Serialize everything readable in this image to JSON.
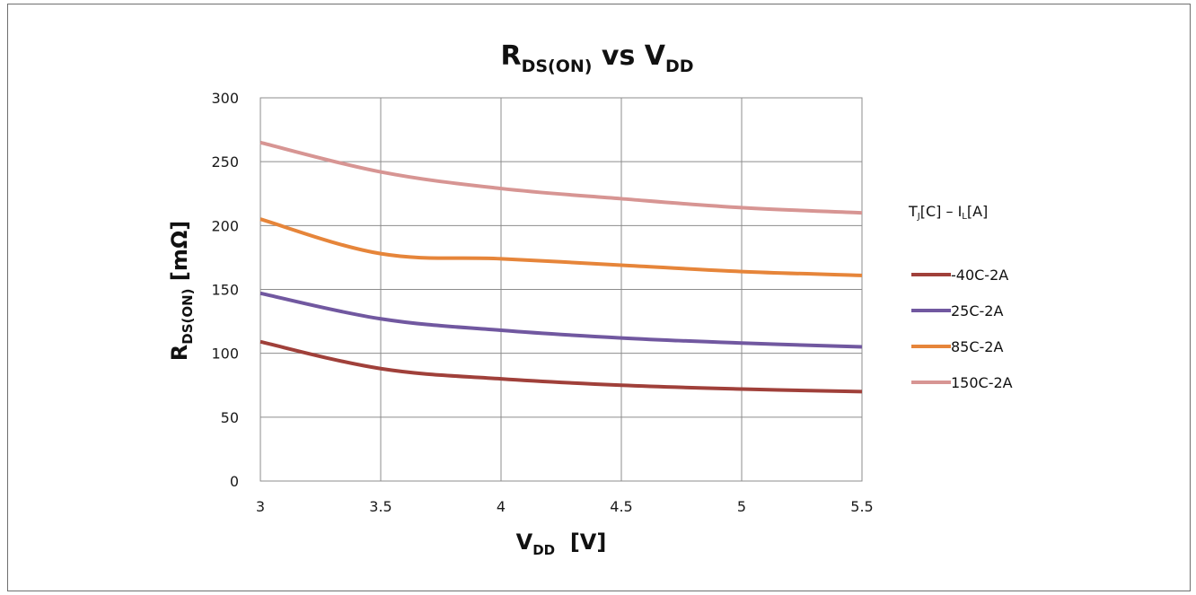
{
  "chart_data": {
    "type": "line",
    "title": {
      "main": "R",
      "sub": "DS(ON)",
      "tail_main": " vs V",
      "tail_sub": "DD"
    },
    "xlabel": {
      "main": "V",
      "sub": "DD",
      "tail": "  [V]"
    },
    "ylabel": {
      "main": "R",
      "sub": "DS(ON)",
      "tail": " [mΩ]"
    },
    "x": [
      3,
      3.5,
      4,
      4.5,
      5,
      5.5
    ],
    "x_tick_labels": [
      "3",
      "3.5",
      "4",
      "4.5",
      "5",
      "5.5"
    ],
    "xlim": [
      3,
      5.5
    ],
    "ylim": [
      0,
      300
    ],
    "y_ticks": [
      0,
      50,
      100,
      150,
      200,
      250,
      300
    ],
    "y_tick_labels": [
      "0",
      "50",
      "100",
      "150",
      "200",
      "250",
      "300"
    ],
    "grid": true,
    "legend": {
      "placement": "right",
      "title": {
        "t": "T",
        "t_sub": "J",
        "mid": "[C] – I",
        "i_sub": "L",
        "end": "[A]"
      }
    },
    "series": [
      {
        "name": "-40C-2A",
        "color": "#a0403a",
        "values": [
          109,
          88,
          80,
          75,
          72,
          70
        ]
      },
      {
        "name": "25C-2A",
        "color": "#7158a0",
        "values": [
          147,
          127,
          118,
          112,
          108,
          105
        ]
      },
      {
        "name": "85C-2A",
        "color": "#e6853a",
        "values": [
          205,
          178,
          174,
          169,
          164,
          161
        ]
      },
      {
        "name": "150C-2A",
        "color": "#d79593",
        "values": [
          265,
          242,
          229,
          221,
          214,
          210
        ]
      }
    ]
  }
}
